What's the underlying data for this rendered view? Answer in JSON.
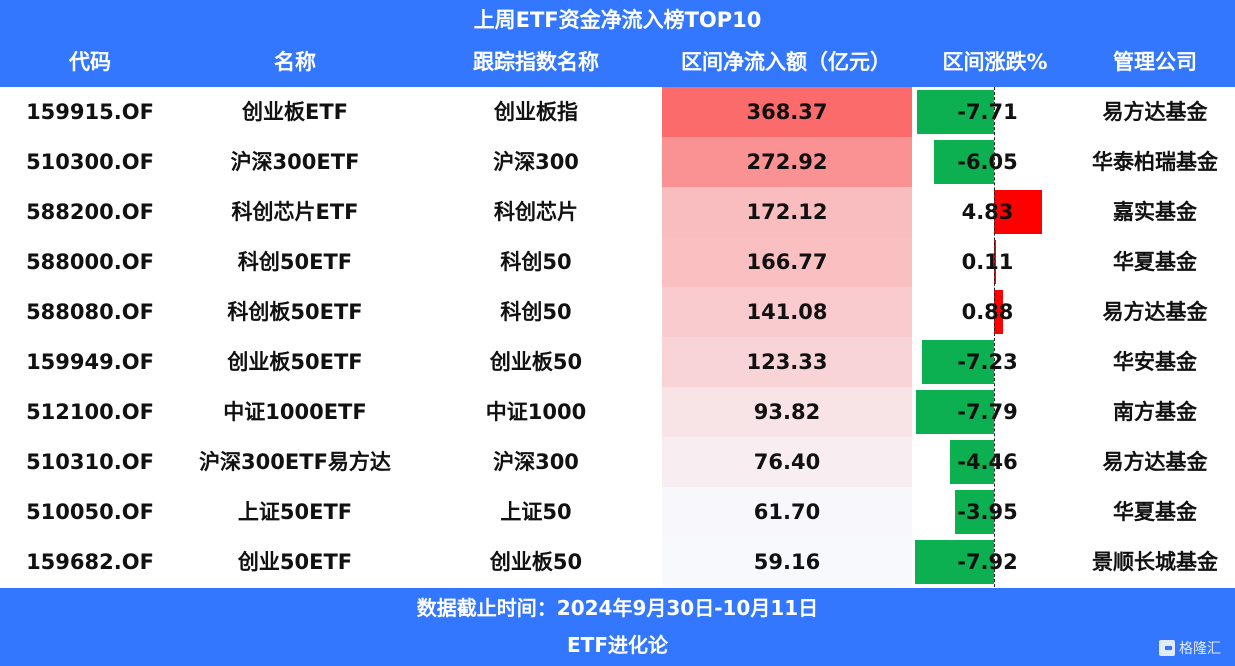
{
  "title": "上周ETF资金净流入榜TOP10",
  "columns": {
    "code": "代码",
    "name": "名称",
    "index": "跟踪指数名称",
    "flow": "区间净流入额（亿元）",
    "change": "区间涨跌%",
    "company": "管理公司"
  },
  "rows": [
    {
      "code": "159915.OF",
      "name": "创业板ETF",
      "index": "创业板指",
      "flow": "368.37",
      "change": "-7.71",
      "company": "易方达基金"
    },
    {
      "code": "510300.OF",
      "name": "沪深300ETF",
      "index": "沪深300",
      "flow": "272.92",
      "change": "-6.05",
      "company": "华泰柏瑞基金"
    },
    {
      "code": "588200.OF",
      "name": "科创芯片ETF",
      "index": "科创芯片",
      "flow": "172.12",
      "change": "4.83",
      "company": "嘉实基金"
    },
    {
      "code": "588000.OF",
      "name": "科创50ETF",
      "index": "科创50",
      "flow": "166.77",
      "change": "0.11",
      "company": "华夏基金"
    },
    {
      "code": "588080.OF",
      "name": "科创板50ETF",
      "index": "科创50",
      "flow": "141.08",
      "change": "0.88",
      "company": "易方达基金"
    },
    {
      "code": "159949.OF",
      "name": "创业板50ETF",
      "index": "创业板50",
      "flow": "123.33",
      "change": "-7.23",
      "company": "华安基金"
    },
    {
      "code": "512100.OF",
      "name": "中证1000ETF",
      "index": "中证1000",
      "flow": "93.82",
      "change": "-7.79",
      "company": "南方基金"
    },
    {
      "code": "510310.OF",
      "name": "沪深300ETF易方达",
      "index": "沪深300",
      "flow": "76.40",
      "change": "-4.46",
      "company": "易方达基金"
    },
    {
      "code": "510050.OF",
      "name": "上证50ETF",
      "index": "上证50",
      "flow": "61.70",
      "change": "-3.95",
      "company": "华夏基金"
    },
    {
      "code": "159682.OF",
      "name": "创业50ETF",
      "index": "创业板50",
      "flow": "59.16",
      "change": "-7.92",
      "company": "景顺长城基金"
    }
  ],
  "footer": {
    "date_line": "数据截止时间：2024年9月30日-10月11日",
    "source": "ETF进化论"
  },
  "watermark": "格隆汇",
  "colors": {
    "header_bg": "#3377ff",
    "positive_bar": "#ff0000",
    "negative_bar": "#0db050",
    "heat_max": "#fb6b6b",
    "heat_min": "#f8f9fd"
  },
  "chart_data": {
    "type": "table",
    "title": "上周ETF资金净流入榜TOP10",
    "columns": [
      "代码",
      "名称",
      "跟踪指数名称",
      "区间净流入额（亿元）",
      "区间涨跌%",
      "管理公司"
    ],
    "categories": [
      "159915.OF",
      "510300.OF",
      "588200.OF",
      "588000.OF",
      "588080.OF",
      "159949.OF",
      "512100.OF",
      "510310.OF",
      "510050.OF",
      "159682.OF"
    ],
    "series": [
      {
        "name": "区间净流入额（亿元）",
        "values": [
          368.37,
          272.92,
          172.12,
          166.77,
          141.08,
          123.33,
          93.82,
          76.4,
          61.7,
          59.16
        ],
        "style": "heatmap"
      },
      {
        "name": "区间涨跌%",
        "values": [
          -7.71,
          -6.05,
          4.83,
          0.11,
          0.88,
          -7.23,
          -7.79,
          -4.46,
          -3.95,
          -7.92
        ],
        "style": "data-bar"
      }
    ],
    "footer": "数据截止时间：2024年9月30日-10月11日",
    "source": "ETF进化论"
  }
}
